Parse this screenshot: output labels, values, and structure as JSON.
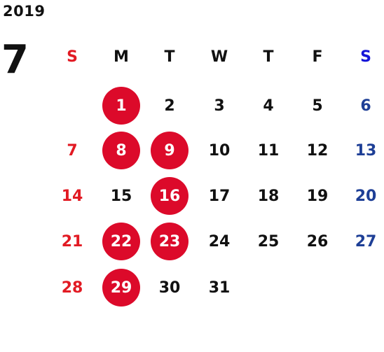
{
  "calendar": {
    "year": "2019",
    "month": "7",
    "weekdays": [
      "S",
      "M",
      "T",
      "W",
      "T",
      "F",
      "S"
    ],
    "weeks": [
      [
        "",
        "1",
        "2",
        "3",
        "4",
        "5",
        "6"
      ],
      [
        "7",
        "8",
        "9",
        "10",
        "11",
        "12",
        "13"
      ],
      [
        "14",
        "15",
        "16",
        "17",
        "18",
        "19",
        "20"
      ],
      [
        "21",
        "22",
        "23",
        "24",
        "25",
        "26",
        "27"
      ],
      [
        "28",
        "29",
        "30",
        "31",
        "",
        "",
        ""
      ]
    ],
    "marked_days": [
      "1",
      "8",
      "9",
      "16",
      "22",
      "23",
      "29"
    ]
  },
  "colors": {
    "sunday": "#e21a23",
    "saturday": "#1e3f96",
    "saturday_header": "#1515d8",
    "marked_background": "#dc0a2a",
    "text": "#111111"
  }
}
